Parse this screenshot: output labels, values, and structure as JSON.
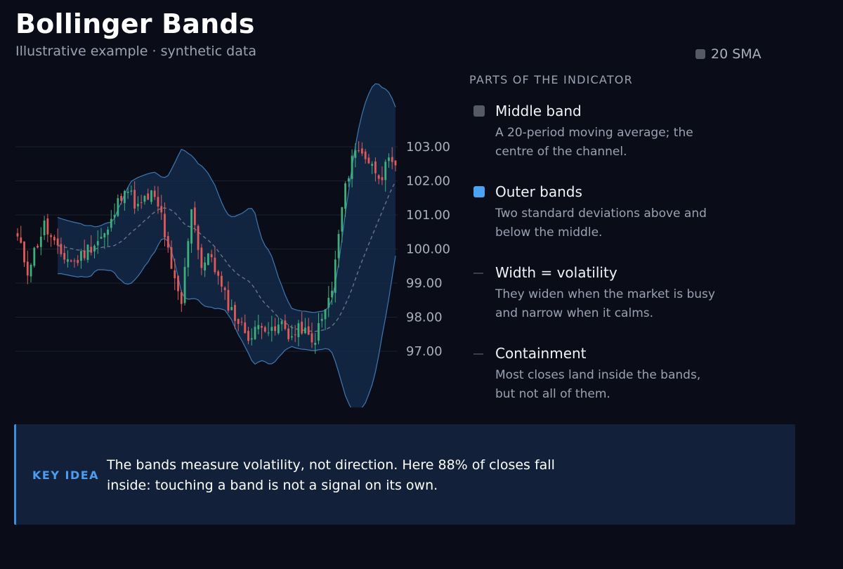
{
  "title": "Bollinger Bands",
  "subtitle": "Illustrative example · synthetic data",
  "legend": {
    "label": "20 SMA",
    "color": "#555a66"
  },
  "parts": {
    "heading": "PARTS OF THE INDICATOR",
    "items": [
      {
        "title": "Middle band",
        "desc": "A 20-period moving average; the centre of the channel.",
        "marker": "box",
        "color": "#555a66"
      },
      {
        "title": "Outer bands",
        "desc": "Two standard deviations above and below the middle.",
        "marker": "box",
        "color": "#4aa3f5"
      },
      {
        "title": "Width = volatility",
        "desc": "They widen when the market is busy and narrow when it calms.",
        "marker": "line",
        "color": "#3a3f4b"
      },
      {
        "title": "Containment",
        "desc": "Most closes land inside the bands, but not all of them.",
        "marker": "line",
        "color": "#3a3f4b"
      }
    ]
  },
  "callout": {
    "label": "KEY IDEA",
    "text": "The bands measure volatility, not direction. Here 88% of closes fall inside: touching a band is not a signal on its own."
  },
  "chart_data": {
    "type": "candlestick",
    "y_ticks": [
      "103.00",
      "102.00",
      "101.00",
      "100.00",
      "99.00",
      "98.00",
      "97.00"
    ],
    "ylim": [
      96.5,
      104.5
    ],
    "grid": true,
    "colors": {
      "up": "#3fae7a",
      "down": "#e05a5a",
      "band_fill": "#142a48",
      "band_line": "#3d78b4",
      "sma": "#6c7383"
    },
    "close_path": [
      [
        0,
        100.3
      ],
      [
        3,
        99.4
      ],
      [
        8,
        100.7
      ],
      [
        12,
        99.9
      ],
      [
        17,
        99.6
      ],
      [
        22,
        100.1
      ],
      [
        27,
        100.5
      ],
      [
        32,
        101.9
      ],
      [
        36,
        101.2
      ],
      [
        40,
        101.6
      ],
      [
        43,
        101.0
      ],
      [
        46,
        99.3
      ],
      [
        49,
        98.4
      ],
      [
        52,
        101.3
      ],
      [
        55,
        99.5
      ],
      [
        58,
        99.8
      ],
      [
        61,
        98.8
      ],
      [
        64,
        98.2
      ],
      [
        67,
        97.7
      ],
      [
        70,
        97.4
      ],
      [
        73,
        97.9
      ],
      [
        76,
        97.5
      ],
      [
        79,
        97.8
      ],
      [
        82,
        97.4
      ],
      [
        85,
        97.7
      ],
      [
        88,
        97.2
      ],
      [
        91,
        97.9
      ],
      [
        94,
        98.8
      ],
      [
        97,
        101.2
      ],
      [
        100,
        102.8
      ],
      [
        103,
        102.9
      ],
      [
        106,
        102.4
      ],
      [
        109,
        102.2
      ],
      [
        111,
        102.5
      ],
      [
        113,
        102.3
      ]
    ]
  }
}
